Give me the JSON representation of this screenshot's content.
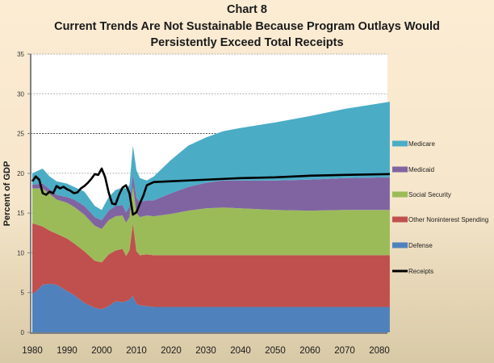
{
  "chart_data": {
    "type": "area",
    "stacked": true,
    "title": "Chart 8",
    "subtitle_line1": "Current Trends Are Not Sustainable Because Program Outlays Would",
    "subtitle_line2": "Persistently Exceed Total Receipts",
    "xlabel": "",
    "ylabel": "Percent of GDP",
    "xlim": [
      1980,
      2083
    ],
    "ylim": [
      0,
      35
    ],
    "yticks": [
      0,
      5,
      10,
      15,
      20,
      25,
      30,
      35
    ],
    "xticks": [
      1980,
      1990,
      2000,
      2010,
      2020,
      2030,
      2040,
      2050,
      2060,
      2070,
      2080
    ],
    "grid": "horizontal-dashed",
    "legend_position": "right",
    "x": [
      1980,
      1981,
      1983,
      1985,
      1987,
      1990,
      1992,
      1995,
      1998,
      2000,
      2002,
      2004,
      2006,
      2007,
      2008,
      2009,
      2010,
      2011,
      2013,
      2015,
      2020,
      2025,
      2030,
      2035,
      2040,
      2050,
      2060,
      2070,
      2083
    ],
    "series": [
      {
        "name": "Defense",
        "color": "#4f81bd",
        "values": [
          4.9,
          5.1,
          6.0,
          6.1,
          6.0,
          5.2,
          4.7,
          3.7,
          3.1,
          2.9,
          3.3,
          3.9,
          3.8,
          3.9,
          4.1,
          4.6,
          3.6,
          3.4,
          3.3,
          3.2,
          3.2,
          3.2,
          3.2,
          3.2,
          3.2,
          3.2,
          3.2,
          3.2,
          3.2
        ]
      },
      {
        "name": "Other Noninterest Spending",
        "color": "#c0504d",
        "values": [
          8.8,
          8.5,
          7.3,
          6.7,
          6.4,
          6.6,
          6.5,
          6.5,
          5.9,
          5.9,
          6.5,
          6.4,
          6.7,
          5.7,
          6.2,
          9.1,
          6.6,
          6.3,
          6.5,
          6.5,
          6.5,
          6.5,
          6.5,
          6.5,
          6.5,
          6.5,
          6.5,
          6.5,
          6.5
        ]
      },
      {
        "name": "Social Security",
        "color": "#9bbb59",
        "values": [
          4.4,
          4.5,
          4.8,
          4.6,
          4.3,
          4.5,
          4.6,
          4.6,
          4.4,
          4.2,
          4.3,
          4.3,
          4.2,
          4.2,
          4.2,
          4.7,
          4.8,
          4.8,
          4.9,
          4.9,
          5.2,
          5.6,
          5.9,
          6.0,
          5.9,
          5.7,
          5.6,
          5.7,
          5.7
        ]
      },
      {
        "name": "Medicaid",
        "color": "#8064a2",
        "values": [
          0.5,
          0.5,
          0.6,
          0.6,
          0.6,
          0.7,
          0.9,
          1.1,
          1.1,
          1.1,
          1.2,
          1.3,
          1.3,
          1.3,
          1.3,
          1.6,
          1.9,
          1.9,
          1.9,
          2.0,
          2.6,
          3.0,
          3.2,
          3.4,
          3.5,
          3.7,
          3.9,
          4.0,
          4.1
        ]
      },
      {
        "name": "Medicare",
        "color": "#4bacc6",
        "values": [
          1.4,
          1.6,
          1.9,
          1.6,
          1.7,
          1.7,
          1.6,
          1.8,
          1.4,
          1.3,
          1.7,
          2.0,
          2.2,
          3.0,
          2.7,
          3.5,
          3.5,
          3.0,
          2.5,
          3.0,
          4.2,
          5.2,
          5.7,
          6.2,
          6.6,
          7.3,
          8.0,
          8.7,
          9.5
        ]
      }
    ],
    "line_series": [
      {
        "name": "Receipts",
        "color": "#000000",
        "x": [
          1980,
          1981,
          1982,
          1983,
          1984,
          1985,
          1986,
          1987,
          1988,
          1989,
          1990,
          1991,
          1992,
          1993,
          1994,
          1995,
          1996,
          1997,
          1998,
          1999,
          2000,
          2001,
          2002,
          2003,
          2004,
          2005,
          2006,
          2007,
          2008,
          2009,
          2010,
          2011,
          2012,
          2013,
          2015,
          2020,
          2030,
          2040,
          2050,
          2060,
          2070,
          2083
        ],
        "values": [
          19.0,
          19.6,
          19.2,
          17.5,
          17.3,
          17.7,
          17.5,
          18.4,
          18.1,
          18.3,
          18.0,
          17.8,
          17.5,
          17.6,
          18.1,
          18.4,
          18.8,
          19.3,
          19.9,
          19.8,
          20.6,
          19.5,
          17.6,
          16.2,
          16.1,
          17.3,
          18.2,
          18.5,
          17.5,
          14.8,
          15.1,
          16.2,
          17.2,
          18.5,
          18.9,
          19.0,
          19.2,
          19.4,
          19.5,
          19.7,
          19.8,
          19.9
        ]
      }
    ],
    "legend": [
      "Medicare",
      "Medicaid",
      "Social Security",
      "Other Noninterest Spending",
      "Defense",
      "Receipts"
    ]
  }
}
